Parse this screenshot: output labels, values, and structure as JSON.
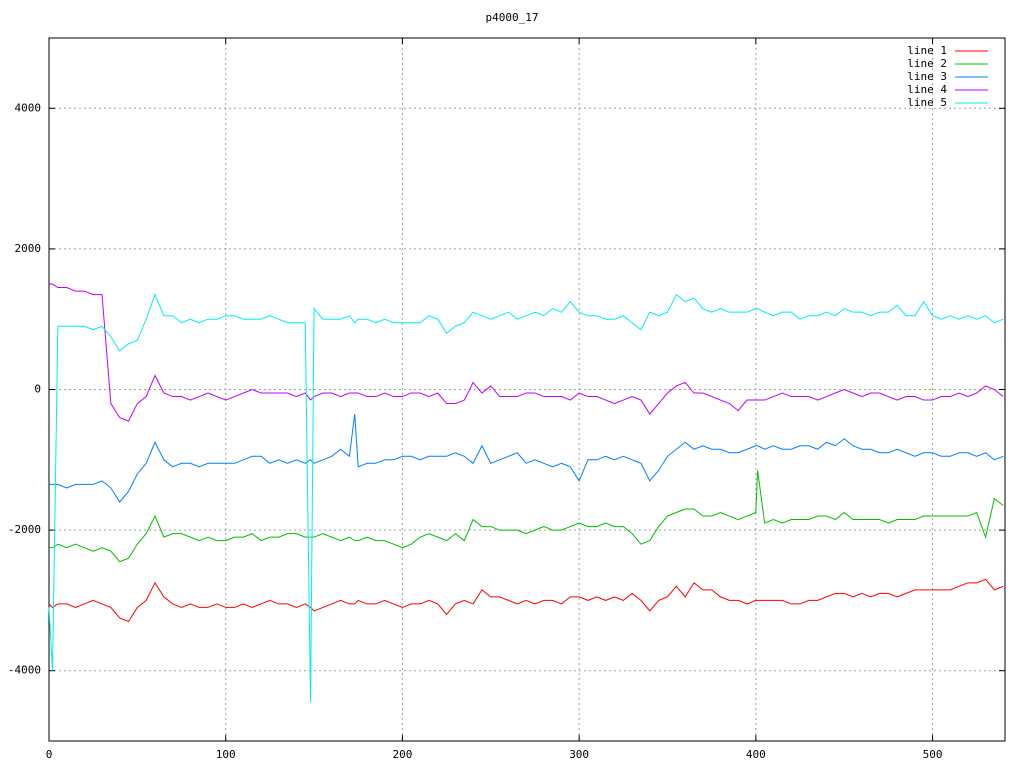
{
  "chart_data": {
    "type": "line",
    "title": "p4000_17",
    "x": [
      0,
      2,
      5,
      10,
      15,
      20,
      25,
      30,
      35,
      40,
      45,
      50,
      55,
      60,
      65,
      70,
      75,
      80,
      85,
      90,
      95,
      100,
      105,
      110,
      115,
      120,
      125,
      130,
      135,
      140,
      145,
      148,
      150,
      155,
      160,
      165,
      170,
      173,
      175,
      180,
      185,
      190,
      195,
      200,
      205,
      210,
      215,
      220,
      225,
      230,
      235,
      240,
      245,
      250,
      255,
      260,
      265,
      270,
      275,
      280,
      285,
      290,
      295,
      300,
      305,
      310,
      315,
      320,
      325,
      330,
      335,
      340,
      345,
      350,
      355,
      360,
      365,
      370,
      375,
      380,
      385,
      390,
      395,
      400,
      401,
      405,
      410,
      415,
      420,
      425,
      430,
      435,
      440,
      445,
      450,
      455,
      460,
      465,
      470,
      475,
      480,
      485,
      490,
      495,
      500,
      505,
      510,
      515,
      520,
      525,
      530,
      535,
      540
    ],
    "series": [
      {
        "name": "line 1",
        "color": "#ff0000",
        "values": [
          -3050,
          -3100,
          -3050,
          -3050,
          -3100,
          -3050,
          -3000,
          -3050,
          -3100,
          -3250,
          -3300,
          -3100,
          -3000,
          -2750,
          -2950,
          -3050,
          -3100,
          -3050,
          -3100,
          -3100,
          -3050,
          -3100,
          -3100,
          -3050,
          -3100,
          -3050,
          -3000,
          -3050,
          -3050,
          -3100,
          -3050,
          -3100,
          -3150,
          -3100,
          -3050,
          -3000,
          -3050,
          -3050,
          -3000,
          -3050,
          -3050,
          -3000,
          -3050,
          -3100,
          -3050,
          -3050,
          -3000,
          -3050,
          -3200,
          -3050,
          -3000,
          -3050,
          -2850,
          -2950,
          -2950,
          -3000,
          -3050,
          -3000,
          -3050,
          -3000,
          -3000,
          -3050,
          -2950,
          -2950,
          -3000,
          -2950,
          -3000,
          -2950,
          -3000,
          -2900,
          -3000,
          -3150,
          -3000,
          -2950,
          -2800,
          -2950,
          -2750,
          -2850,
          -2850,
          -2950,
          -3000,
          -3000,
          -3050,
          -3000,
          -3000,
          -3000,
          -3000,
          -3000,
          -3050,
          -3050,
          -3000,
          -3000,
          -2950,
          -2900,
          -2900,
          -2950,
          -2900,
          -2950,
          -2900,
          -2900,
          -2950,
          -2900,
          -2850,
          -2850,
          -2850,
          -2850,
          -2850,
          -2800,
          -2750,
          -2750,
          -2700,
          -2850,
          -2800
        ]
      },
      {
        "name": "line 2",
        "color": "#00c000",
        "values": [
          -2250,
          -2250,
          -2200,
          -2250,
          -2200,
          -2250,
          -2300,
          -2250,
          -2300,
          -2450,
          -2400,
          -2200,
          -2050,
          -1800,
          -2100,
          -2050,
          -2050,
          -2100,
          -2150,
          -2100,
          -2150,
          -2150,
          -2100,
          -2100,
          -2050,
          -2150,
          -2100,
          -2100,
          -2050,
          -2050,
          -2100,
          -2100,
          -2100,
          -2050,
          -2100,
          -2150,
          -2100,
          -2150,
          -2150,
          -2100,
          -2150,
          -2150,
          -2200,
          -2250,
          -2200,
          -2100,
          -2050,
          -2100,
          -2150,
          -2050,
          -2150,
          -1850,
          -1950,
          -1950,
          -2000,
          -2000,
          -2000,
          -2050,
          -2000,
          -1950,
          -2000,
          -2000,
          -1950,
          -1900,
          -1950,
          -1950,
          -1900,
          -1950,
          -1950,
          -2050,
          -2200,
          -2150,
          -1950,
          -1800,
          -1750,
          -1700,
          -1700,
          -1800,
          -1800,
          -1750,
          -1800,
          -1850,
          -1800,
          -1750,
          -1150,
          -1900,
          -1850,
          -1900,
          -1850,
          -1850,
          -1850,
          -1800,
          -1800,
          -1850,
          -1750,
          -1850,
          -1850,
          -1850,
          -1850,
          -1900,
          -1850,
          -1850,
          -1850,
          -1800,
          -1800,
          -1800,
          -1800,
          -1800,
          -1800,
          -1750,
          -2100,
          -1550,
          -1650
        ]
      },
      {
        "name": "line 3",
        "color": "#0080ff",
        "values": [
          -1350,
          -1350,
          -1350,
          -1400,
          -1350,
          -1350,
          -1350,
          -1300,
          -1400,
          -1600,
          -1450,
          -1200,
          -1050,
          -750,
          -1000,
          -1100,
          -1050,
          -1050,
          -1100,
          -1050,
          -1050,
          -1050,
          -1050,
          -1000,
          -950,
          -950,
          -1050,
          -1000,
          -1050,
          -1000,
          -1050,
          -1000,
          -1050,
          -1000,
          -950,
          -850,
          -950,
          -350,
          -1100,
          -1050,
          -1050,
          -1000,
          -1000,
          -950,
          -950,
          -1000,
          -950,
          -950,
          -950,
          -900,
          -950,
          -1050,
          -800,
          -1050,
          -1000,
          -950,
          -900,
          -1050,
          -1000,
          -1050,
          -1100,
          -1050,
          -1100,
          -1300,
          -1000,
          -1000,
          -950,
          -1000,
          -950,
          -1000,
          -1050,
          -1300,
          -1150,
          -950,
          -850,
          -750,
          -850,
          -800,
          -850,
          -850,
          -900,
          -900,
          -850,
          -800,
          -800,
          -850,
          -800,
          -850,
          -850,
          -800,
          -800,
          -850,
          -750,
          -800,
          -700,
          -800,
          -850,
          -850,
          -900,
          -900,
          -850,
          -900,
          -950,
          -900,
          -900,
          -950,
          -950,
          -900,
          -900,
          -950,
          -900,
          -1000,
          -950
        ]
      },
      {
        "name": "line 4",
        "color": "#c000ff",
        "values": [
          1500,
          1500,
          1450,
          1450,
          1400,
          1400,
          1350,
          1350,
          -200,
          -400,
          -450,
          -200,
          -100,
          200,
          -50,
          -100,
          -100,
          -150,
          -100,
          -50,
          -100,
          -150,
          -100,
          -50,
          0,
          -50,
          -50,
          -50,
          -50,
          -100,
          -50,
          -150,
          -100,
          -50,
          -50,
          -100,
          -50,
          -50,
          -50,
          -100,
          -100,
          -50,
          -100,
          -100,
          -50,
          -50,
          -100,
          -50,
          -200,
          -200,
          -150,
          100,
          -50,
          50,
          -100,
          -100,
          -100,
          -50,
          -50,
          -100,
          -100,
          -100,
          -150,
          -50,
          -100,
          -100,
          -150,
          -200,
          -150,
          -100,
          -150,
          -350,
          -200,
          -50,
          50,
          100,
          -50,
          -50,
          -100,
          -150,
          -200,
          -300,
          -150,
          -150,
          -150,
          -150,
          -100,
          -50,
          -100,
          -100,
          -100,
          -150,
          -100,
          -50,
          0,
          -50,
          -100,
          -50,
          -50,
          -100,
          -150,
          -100,
          -100,
          -150,
          -150,
          -100,
          -100,
          -50,
          -100,
          -50,
          50,
          0,
          -100
        ]
      },
      {
        "name": "line 5",
        "color": "#00eeee",
        "values": [
          -3100,
          -4000,
          900,
          900,
          900,
          900,
          850,
          900,
          750,
          550,
          650,
          700,
          1000,
          1350,
          1050,
          1050,
          950,
          1000,
          950,
          1000,
          1000,
          1050,
          1050,
          1000,
          1000,
          1000,
          1050,
          1000,
          950,
          950,
          950,
          -4450,
          1150,
          1000,
          1000,
          1000,
          1050,
          950,
          1000,
          1000,
          950,
          1000,
          950,
          950,
          950,
          950,
          1050,
          1000,
          800,
          900,
          950,
          1100,
          1050,
          1000,
          1050,
          1100,
          1000,
          1050,
          1100,
          1050,
          1150,
          1100,
          1250,
          1100,
          1050,
          1050,
          1000,
          1000,
          1050,
          950,
          850,
          1100,
          1050,
          1100,
          1350,
          1250,
          1300,
          1150,
          1100,
          1150,
          1100,
          1100,
          1100,
          1150,
          1150,
          1100,
          1050,
          1100,
          1100,
          1000,
          1050,
          1050,
          1100,
          1050,
          1150,
          1100,
          1100,
          1050,
          1100,
          1100,
          1200,
          1050,
          1050,
          1250,
          1050,
          1000,
          1050,
          1000,
          1050,
          1000,
          1050,
          950,
          1000
        ]
      }
    ],
    "xlim": [
      0,
      541
    ],
    "ylim": [
      -5000,
      5000
    ],
    "xticks": [
      0,
      100,
      200,
      300,
      400,
      500
    ],
    "yticks": [
      -4000,
      -2000,
      0,
      2000,
      4000
    ],
    "grid": true,
    "legend": "top-right"
  }
}
